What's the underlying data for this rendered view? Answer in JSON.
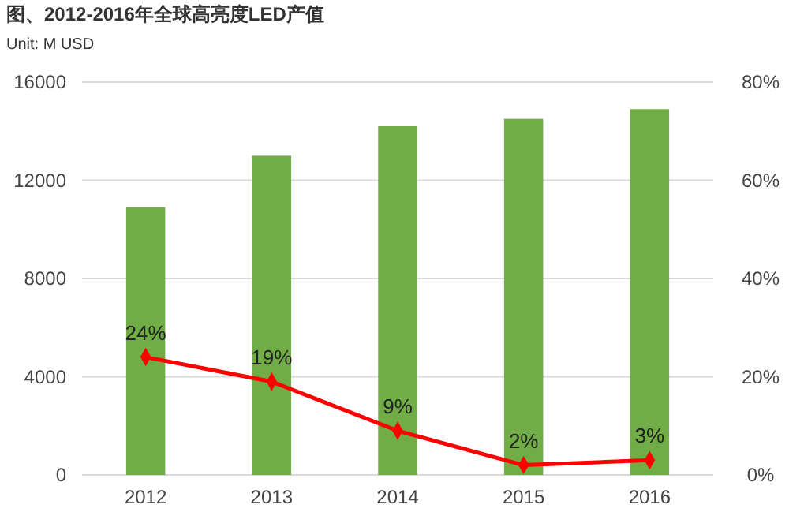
{
  "chart_data": {
    "type": "bar",
    "title": "图、2012-2016年全球高亮度LED产值",
    "subtitle": "Unit: M USD",
    "categories": [
      "2012",
      "2013",
      "2014",
      "2015",
      "2016"
    ],
    "series": [
      {
        "color": "#70ad47",
        "values": [
          10900,
          13000,
          14200,
          14500,
          14900
        ]
      },
      {
        "type": "line",
        "color": "#ff0000",
        "axis": "y2",
        "marker": "diamond",
        "values": [
          24,
          19,
          9,
          2,
          3
        ],
        "value_labels": [
          "24%",
          "19%",
          "9%",
          "2%",
          "3%"
        ]
      }
    ],
    "ylim": [
      0,
      16000
    ],
    "yticks": [
      0,
      4000,
      8000,
      12000,
      16000
    ],
    "y2lim": [
      0,
      80
    ],
    "y2ticks": [
      {
        "value": 0,
        "label": "0%"
      },
      {
        "value": 20,
        "label": "20%"
      },
      {
        "value": 40,
        "label": "40%"
      },
      {
        "value": 60,
        "label": "60%"
      },
      {
        "value": 80,
        "label": "80%"
      }
    ],
    "grid": "y"
  }
}
